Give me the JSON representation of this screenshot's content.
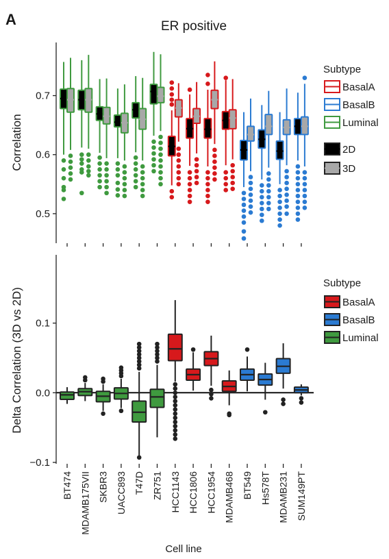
{
  "panel_letter": "A",
  "colors": {
    "BasalA": "#d7191c",
    "BasalB": "#2b7bd2",
    "Luminal": "#3f9a3f",
    "2D": "#000000",
    "3D": "#a8a8a8"
  },
  "chart_data": [
    {
      "type": "box",
      "title": "ER positive",
      "xlabel": "",
      "ylabel": "Correlation",
      "ylim": [
        0.45,
        0.79
      ],
      "yticks": [
        0.5,
        0.6,
        0.7
      ],
      "categories": [
        "BT474",
        "MDAMB175VII",
        "SKBR3",
        "UACC893",
        "T47D",
        "ZR751",
        "HCC1143",
        "HCC1806",
        "HCC1954",
        "MDAMB468",
        "BT549",
        "Hs578T",
        "MDAMB231",
        "SUM149PT"
      ],
      "subtype": [
        "Luminal",
        "Luminal",
        "Luminal",
        "Luminal",
        "Luminal",
        "Luminal",
        "BasalA",
        "BasalA",
        "BasalA",
        "BasalA",
        "BasalB",
        "BasalB",
        "BasalB",
        "BasalB"
      ],
      "legends": [
        {
          "title": "Subtype",
          "items": [
            "BasalA",
            "BasalB",
            "Luminal"
          ]
        },
        {
          "title": "",
          "items": [
            "2D",
            "3D"
          ]
        }
      ],
      "series": [
        {
          "name": "2D",
          "boxes": [
            {
              "q1": 0.678,
              "med": 0.695,
              "q3": 0.711,
              "lo": 0.6,
              "hi": 0.757,
              "out": [
                0.59,
                0.575,
                0.56,
                0.545,
                0.54,
                0.525
              ]
            },
            {
              "q1": 0.676,
              "med": 0.693,
              "q3": 0.709,
              "lo": 0.612,
              "hi": 0.76,
              "out": [
                0.6,
                0.592,
                0.585,
                0.575,
                0.57,
                0.535
              ]
            },
            {
              "q1": 0.658,
              "med": 0.669,
              "q3": 0.681,
              "lo": 0.603,
              "hi": 0.728,
              "out": [
                0.595,
                0.585,
                0.575,
                0.565,
                0.555,
                0.545
              ]
            },
            {
              "q1": 0.647,
              "med": 0.655,
              "q3": 0.667,
              "lo": 0.594,
              "hi": 0.712,
              "out": [
                0.585,
                0.575,
                0.565,
                0.552,
                0.541,
                0.531
              ]
            },
            {
              "q1": 0.662,
              "med": 0.676,
              "q3": 0.688,
              "lo": 0.604,
              "hi": 0.733,
              "out": [
                0.595,
                0.585,
                0.575,
                0.565,
                0.555,
                0.545
              ]
            },
            {
              "q1": 0.686,
              "med": 0.707,
              "q3": 0.719,
              "lo": 0.632,
              "hi": 0.774,
              "out": [
                0.622,
                0.612,
                0.602,
                0.592,
                0.582,
                0.572
              ]
            },
            {
              "q1": 0.598,
              "med": 0.614,
              "q3": 0.631,
              "lo": 0.548,
              "hi": 0.675,
              "out": [
                0.685,
                0.693,
                0.702,
                0.712,
                0.722,
                0.538,
                0.528
              ]
            },
            {
              "q1": 0.628,
              "med": 0.644,
              "q3": 0.661,
              "lo": 0.581,
              "hi": 0.702,
              "out": [
                0.57,
                0.56,
                0.55,
                0.54,
                0.53,
                0.52,
                0.71
              ]
            },
            {
              "q1": 0.628,
              "med": 0.643,
              "q3": 0.661,
              "lo": 0.58,
              "hi": 0.71,
              "out": [
                0.57,
                0.56,
                0.55,
                0.54,
                0.53,
                0.52,
                0.72,
                0.735
              ]
            },
            {
              "q1": 0.643,
              "med": 0.658,
              "q3": 0.673,
              "lo": 0.582,
              "hi": 0.726,
              "out": [
                0.57,
                0.56,
                0.55,
                0.54,
                0.73
              ]
            },
            {
              "q1": 0.591,
              "med": 0.608,
              "q3": 0.624,
              "lo": 0.545,
              "hi": 0.672,
              "out": [
                0.535,
                0.525,
                0.515,
                0.505,
                0.495,
                0.485,
                0.47,
                0.458
              ]
            },
            {
              "q1": 0.611,
              "med": 0.626,
              "q3": 0.642,
              "lo": 0.558,
              "hi": 0.684,
              "out": [
                0.548,
                0.538,
                0.528,
                0.518,
                0.508,
                0.498,
                0.488
              ]
            },
            {
              "q1": 0.592,
              "med": 0.606,
              "q3": 0.623,
              "lo": 0.55,
              "hi": 0.672,
              "out": [
                0.54,
                0.53,
                0.52,
                0.51,
                0.5,
                0.49,
                0.48
              ]
            },
            {
              "q1": 0.634,
              "med": 0.648,
              "q3": 0.661,
              "lo": 0.59,
              "hi": 0.705,
              "out": [
                0.58,
                0.57,
                0.56,
                0.55,
                0.54,
                0.53,
                0.52,
                0.51,
                0.5,
                0.49
              ]
            }
          ]
        },
        {
          "name": "3D",
          "boxes": [
            {
              "q1": 0.672,
              "med": 0.693,
              "q3": 0.712,
              "lo": 0.608,
              "hi": 0.764,
              "out": [
                0.598,
                0.588,
                0.578,
                0.568,
                0.558
              ]
            },
            {
              "q1": 0.672,
              "med": 0.693,
              "q3": 0.712,
              "lo": 0.61,
              "hi": 0.769,
              "out": [
                0.6,
                0.59,
                0.58,
                0.572,
                0.565
              ]
            },
            {
              "q1": 0.652,
              "med": 0.665,
              "q3": 0.68,
              "lo": 0.594,
              "hi": 0.729,
              "out": [
                0.585,
                0.575,
                0.565,
                0.555,
                0.545,
                0.535
              ]
            },
            {
              "q1": 0.637,
              "med": 0.654,
              "q3": 0.67,
              "lo": 0.59,
              "hi": 0.719,
              "out": [
                0.58,
                0.57,
                0.56,
                0.55,
                0.54,
                0.53
              ]
            },
            {
              "q1": 0.643,
              "med": 0.66,
              "q3": 0.678,
              "lo": 0.59,
              "hi": 0.73,
              "out": [
                0.58,
                0.57,
                0.56,
                0.55,
                0.54,
                0.53
              ]
            },
            {
              "q1": 0.688,
              "med": 0.699,
              "q3": 0.714,
              "lo": 0.64,
              "hi": 0.77,
              "out": [
                0.63,
                0.62,
                0.61,
                0.6,
                0.59,
                0.58,
                0.57,
                0.56,
                0.55
              ]
            },
            {
              "q1": 0.664,
              "med": 0.679,
              "q3": 0.693,
              "lo": 0.622,
              "hi": 0.721,
              "out": [
                0.61,
                0.6,
                0.59,
                0.58,
                0.57,
                0.56,
                0.55
              ]
            },
            {
              "q1": 0.653,
              "med": 0.665,
              "q3": 0.678,
              "lo": 0.602,
              "hi": 0.723,
              "out": [
                0.592,
                0.582,
                0.572,
                0.562,
                0.552
              ]
            },
            {
              "q1": 0.678,
              "med": 0.693,
              "q3": 0.709,
              "lo": 0.618,
              "hi": 0.758,
              "out": [
                0.608,
                0.598,
                0.588,
                0.578,
                0.568,
                0.558
              ]
            },
            {
              "q1": 0.644,
              "med": 0.662,
              "q3": 0.676,
              "lo": 0.592,
              "hi": 0.728,
              "out": [
                0.582,
                0.572,
                0.562,
                0.552,
                0.542
              ]
            },
            {
              "q1": 0.623,
              "med": 0.634,
              "q3": 0.648,
              "lo": 0.572,
              "hi": 0.695,
              "out": [
                0.562,
                0.552,
                0.542,
                0.532,
                0.522,
                0.512,
                0.502
              ]
            },
            {
              "q1": 0.634,
              "med": 0.648,
              "q3": 0.668,
              "lo": 0.578,
              "hi": 0.708,
              "out": [
                0.568,
                0.558,
                0.548,
                0.538,
                0.528,
                0.518,
                0.508
              ]
            },
            {
              "q1": 0.634,
              "med": 0.646,
              "q3": 0.659,
              "lo": 0.582,
              "hi": 0.712,
              "out": [
                0.572,
                0.562,
                0.552,
                0.542,
                0.532,
                0.522,
                0.512,
                0.5
              ]
            },
            {
              "q1": 0.634,
              "med": 0.648,
              "q3": 0.664,
              "lo": 0.58,
              "hi": 0.72,
              "out": [
                0.57,
                0.56,
                0.55,
                0.54,
                0.53,
                0.52,
                0.51,
                0.73
              ]
            }
          ]
        }
      ]
    },
    {
      "type": "box",
      "title": "",
      "xlabel": "Cell line",
      "ylabel": "Delta Correlation (3D vs 2D)",
      "ylim": [
        -0.102,
        0.198
      ],
      "yticks": [
        -0.1,
        0.0,
        0.1
      ],
      "ytick_labels": [
        "−0.1",
        "0.0",
        "0.1"
      ],
      "hline": 0.0,
      "categories": [
        "BT474",
        "MDAMB175VII",
        "SKBR3",
        "UACC893",
        "T47D",
        "ZR751",
        "HCC1143",
        "HCC1806",
        "HCC1954",
        "MDAMB468",
        "BT549",
        "Hs578T",
        "MDAMB231",
        "SUM149PT"
      ],
      "subtype": [
        "Luminal",
        "Luminal",
        "Luminal",
        "Luminal",
        "Luminal",
        "Luminal",
        "BasalA",
        "BasalA",
        "BasalA",
        "BasalA",
        "BasalB",
        "BasalB",
        "BasalB",
        "BasalB"
      ],
      "legends": [
        {
          "title": "Subtype",
          "items": [
            "BasalA",
            "BasalB",
            "Luminal"
          ]
        }
      ],
      "boxes": [
        {
          "q1": -0.0095,
          "med": -0.003,
          "q3": 0.001,
          "lo": -0.016,
          "hi": 0.008,
          "out": []
        },
        {
          "q1": -0.004,
          "med": 0.0015,
          "q3": 0.006,
          "lo": -0.012,
          "hi": 0.014,
          "out": [
            0.018,
            0.022
          ]
        },
        {
          "q1": -0.013,
          "med": -0.005,
          "q3": 0.002,
          "lo": -0.026,
          "hi": 0.012,
          "out": [
            -0.03,
            0.016,
            0.02
          ]
        },
        {
          "q1": -0.009,
          "med": -0.001,
          "q3": 0.007,
          "lo": -0.022,
          "hi": 0.02,
          "out": [
            0.024,
            0.028,
            0.032,
            0.036,
            -0.026
          ]
        },
        {
          "q1": -0.042,
          "med": -0.028,
          "q3": -0.012,
          "lo": -0.09,
          "hi": 0.03,
          "out": [
            0.035,
            0.04,
            0.045,
            0.05,
            0.055,
            0.06,
            0.065,
            0.07,
            -0.093
          ]
        },
        {
          "q1": -0.021,
          "med": -0.006,
          "q3": 0.005,
          "lo": -0.064,
          "hi": 0.04,
          "out": [
            0.045,
            0.05,
            0.055,
            0.06,
            0.065,
            0.07
          ]
        },
        {
          "q1": 0.046,
          "med": 0.063,
          "q3": 0.084,
          "lo": 0.016,
          "hi": 0.133,
          "out": [
            0.012,
            0.006,
            0.0,
            -0.006,
            -0.012,
            -0.018,
            -0.024,
            -0.03,
            -0.036,
            -0.042,
            -0.048,
            -0.054,
            -0.06,
            -0.066
          ]
        },
        {
          "q1": 0.018,
          "med": 0.026,
          "q3": 0.034,
          "lo": 0.003,
          "hi": 0.058,
          "out": [
            0.062
          ]
        },
        {
          "q1": 0.039,
          "med": 0.049,
          "q3": 0.059,
          "lo": 0.01,
          "hi": 0.082,
          "out": [
            0.004,
            -0.002,
            -0.008
          ]
        },
        {
          "q1": 0.002,
          "med": 0.009,
          "q3": 0.017,
          "lo": -0.018,
          "hi": 0.032,
          "out": [
            -0.03,
            -0.032
          ]
        },
        {
          "q1": 0.018,
          "med": 0.026,
          "q3": 0.034,
          "lo": 0.002,
          "hi": 0.052,
          "out": [
            0.062
          ]
        },
        {
          "q1": 0.011,
          "med": 0.019,
          "q3": 0.027,
          "lo": -0.01,
          "hi": 0.043,
          "out": [
            -0.028
          ]
        },
        {
          "q1": 0.028,
          "med": 0.038,
          "q3": 0.049,
          "lo": 0.006,
          "hi": 0.071,
          "out": [
            -0.01,
            -0.016
          ]
        },
        {
          "q1": 0.0,
          "med": 0.004,
          "q3": 0.008,
          "lo": -0.004,
          "hi": 0.012,
          "out": [
            -0.008,
            -0.014
          ]
        }
      ]
    }
  ]
}
